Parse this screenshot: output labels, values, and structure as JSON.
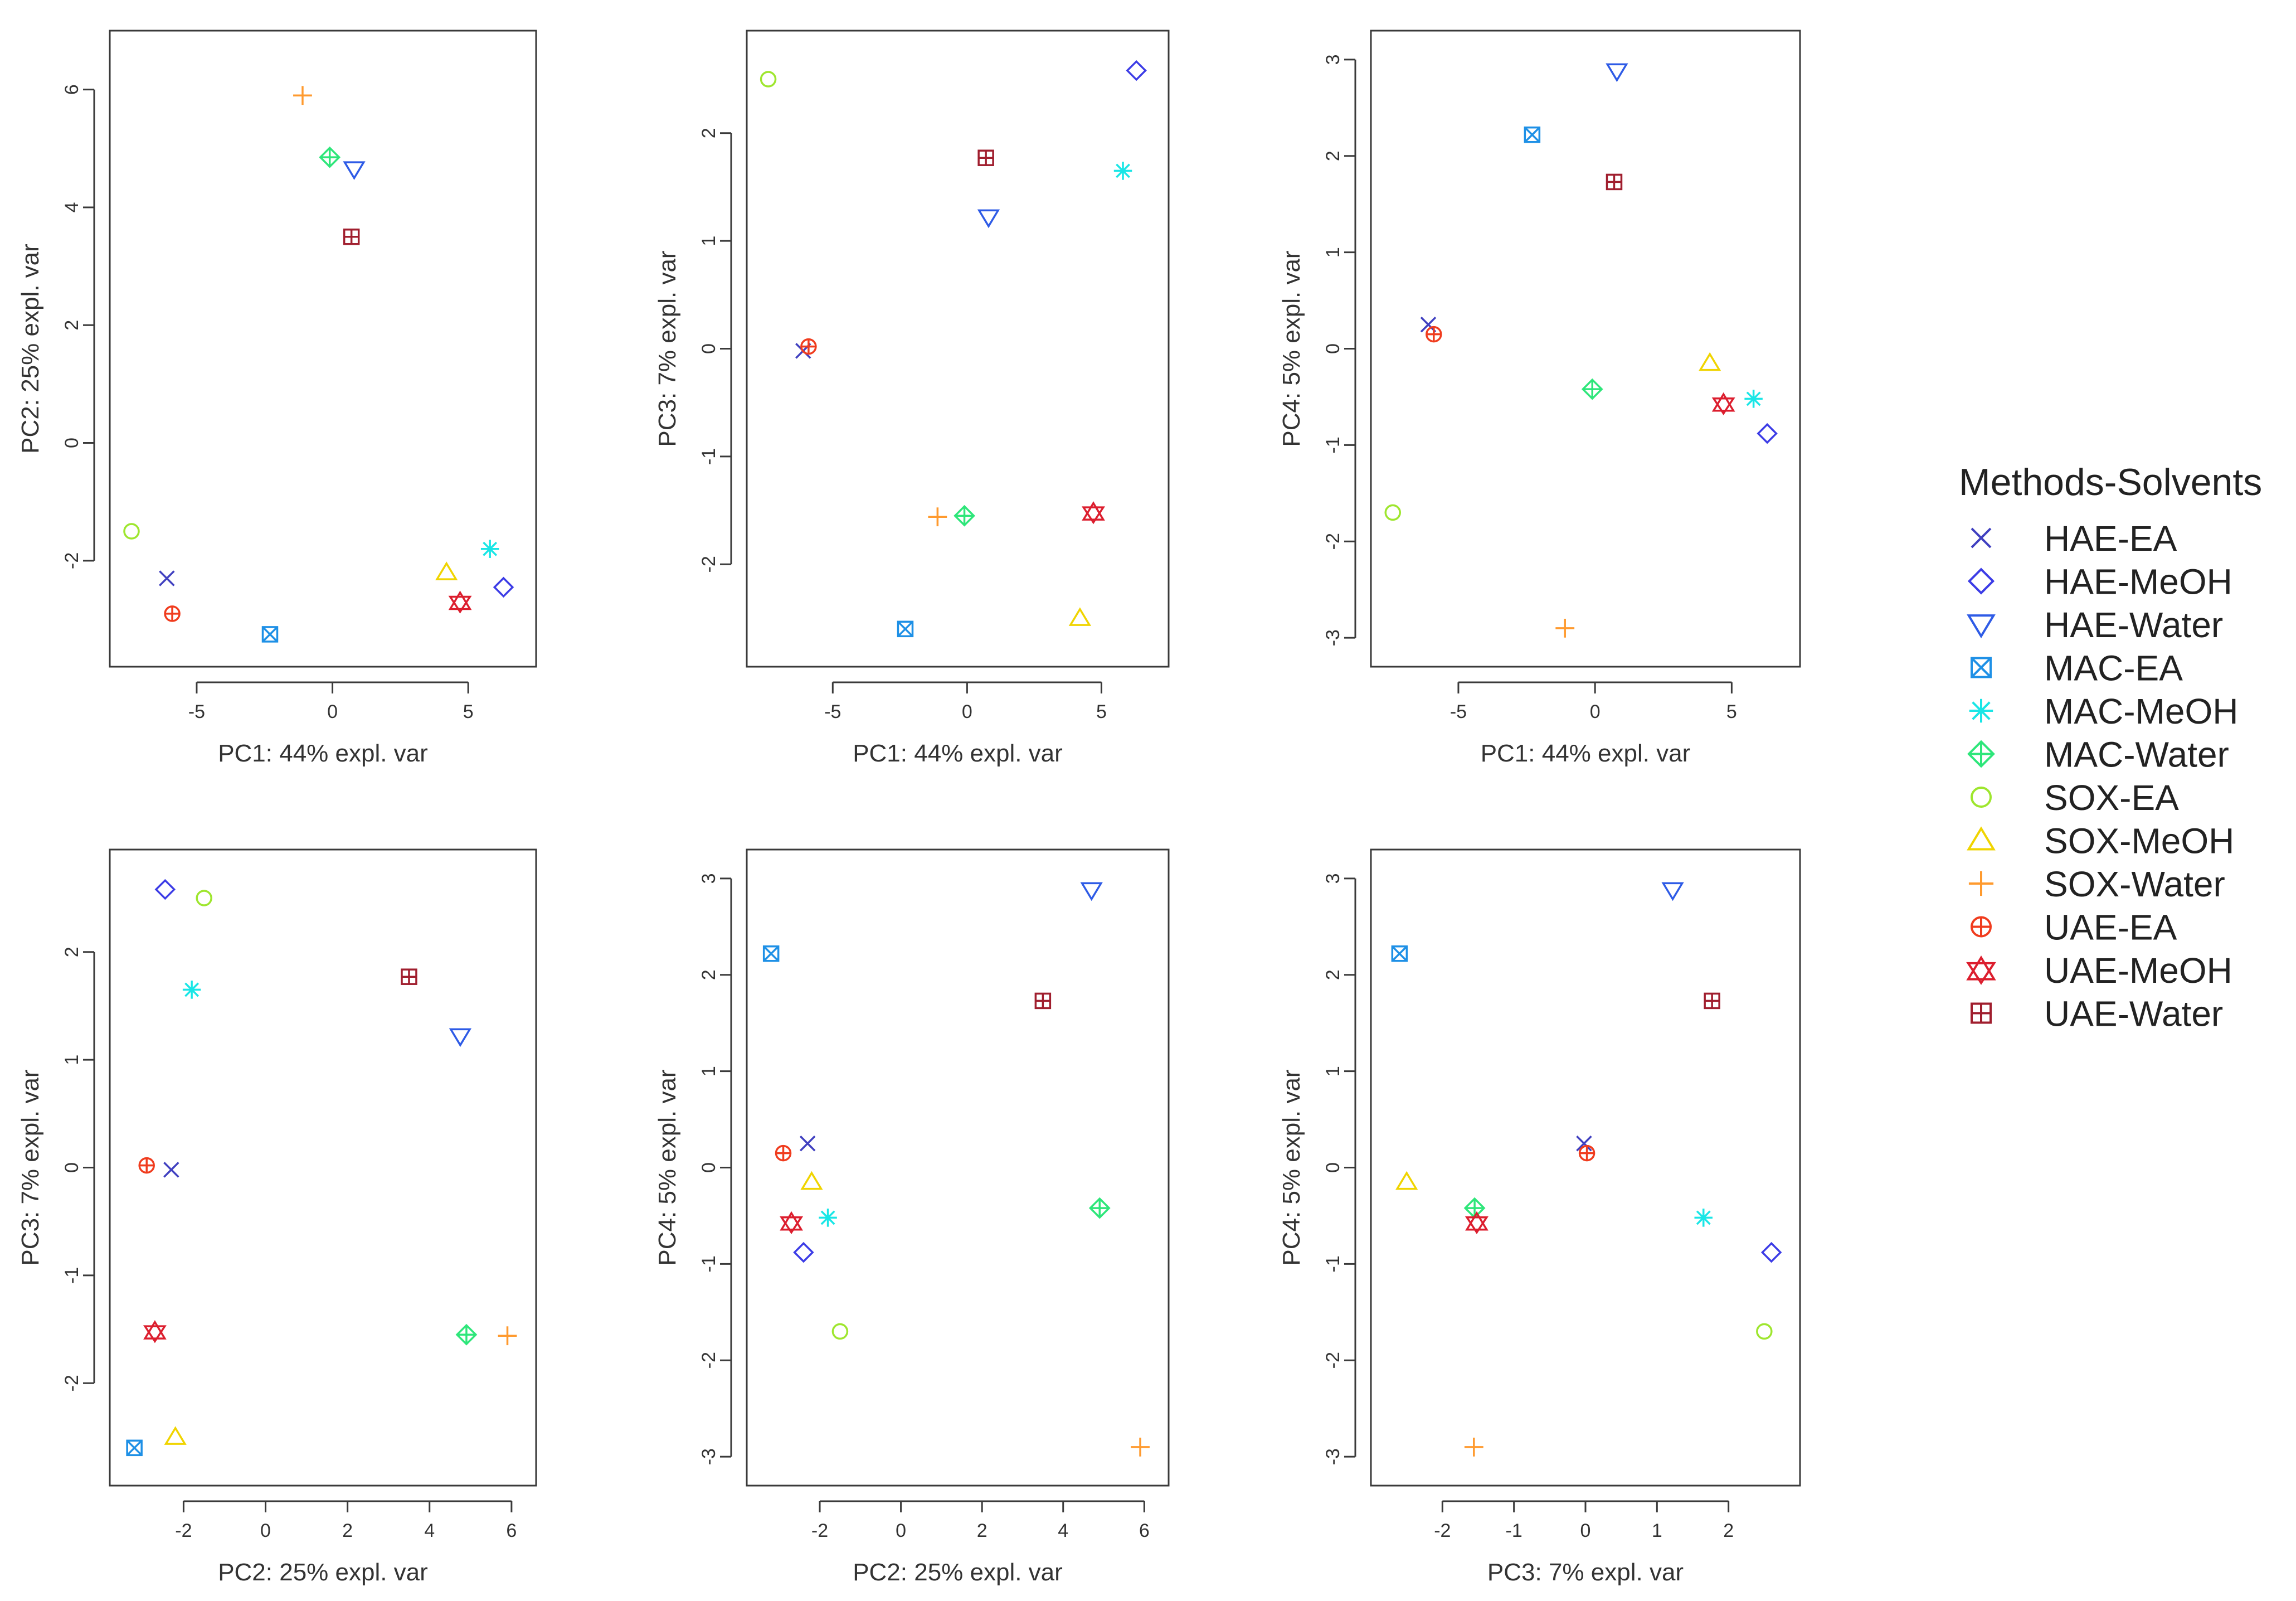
{
  "legend": {
    "title": "Methods-Solvents",
    "items": [
      {
        "label": "HAE-EA",
        "color": "#4040c0",
        "icon": "x-icon"
      },
      {
        "label": "HAE-MeOH",
        "color": "#3c3ce6",
        "icon": "diamond-icon"
      },
      {
        "label": "HAE-Water",
        "color": "#2e5be6",
        "icon": "triangle-down-icon"
      },
      {
        "label": "MAC-EA",
        "color": "#1e90e6",
        "icon": "boxed-x-icon"
      },
      {
        "label": "MAC-MeOH",
        "color": "#19e6e6",
        "icon": "asterisk-icon"
      },
      {
        "label": "MAC-Water",
        "color": "#2ee67a",
        "icon": "diamond-plus-icon"
      },
      {
        "label": "SOX-EA",
        "color": "#9ee62e",
        "icon": "circle-icon"
      },
      {
        "label": "SOX-MeOH",
        "color": "#f0d400",
        "icon": "triangle-up-icon"
      },
      {
        "label": "SOX-Water",
        "color": "#ff9a2e",
        "icon": "plus-icon"
      },
      {
        "label": "UAE-EA",
        "color": "#f03c1e",
        "icon": "circle-plus-icon"
      },
      {
        "label": "UAE-MeOH",
        "color": "#dc1e2e",
        "icon": "star-of-david-icon"
      },
      {
        "label": "UAE-Water",
        "color": "#a01e2e",
        "icon": "boxed-plus-icon"
      }
    ]
  },
  "chart_data": [
    {
      "type": "scatter",
      "id": "pc1-pc2",
      "xlabel": "PC1: 44% expl. var",
      "ylabel": "PC2: 25% expl. var",
      "xlim": [
        -8.2,
        7.5
      ],
      "ylim": [
        -3.8,
        7.0
      ],
      "xticks": [
        -5,
        0,
        5
      ],
      "yticks": [
        -2,
        0,
        2,
        4,
        6
      ],
      "points": [
        {
          "series": "HAE-EA",
          "x": -6.1,
          "y": -2.3
        },
        {
          "series": "HAE-MeOH",
          "x": 6.3,
          "y": -2.45
        },
        {
          "series": "HAE-Water",
          "x": 0.8,
          "y": 4.65
        },
        {
          "series": "MAC-EA",
          "x": -2.3,
          "y": -3.25
        },
        {
          "series": "MAC-MeOH",
          "x": 5.8,
          "y": -1.8
        },
        {
          "series": "MAC-Water",
          "x": -0.1,
          "y": 4.85
        },
        {
          "series": "SOX-EA",
          "x": -7.4,
          "y": -1.5
        },
        {
          "series": "SOX-MeOH",
          "x": 4.2,
          "y": -2.2
        },
        {
          "series": "SOX-Water",
          "x": -1.1,
          "y": 5.9
        },
        {
          "series": "UAE-EA",
          "x": -5.9,
          "y": -2.9
        },
        {
          "series": "UAE-MeOH",
          "x": 4.7,
          "y": -2.7
        },
        {
          "series": "UAE-Water",
          "x": 0.7,
          "y": 3.5
        }
      ]
    },
    {
      "type": "scatter",
      "id": "pc1-pc3",
      "xlabel": "PC1: 44% expl. var",
      "ylabel": "PC3: 7% expl. var",
      "xlim": [
        -8.2,
        7.5
      ],
      "ylim": [
        -2.95,
        2.95
      ],
      "xticks": [
        -5,
        0,
        5
      ],
      "yticks": [
        -2,
        -1,
        0,
        1,
        2
      ],
      "points": [
        {
          "series": "HAE-EA",
          "x": -6.1,
          "y": -0.02
        },
        {
          "series": "HAE-MeOH",
          "x": 6.3,
          "y": 2.58
        },
        {
          "series": "HAE-Water",
          "x": 0.8,
          "y": 1.22
        },
        {
          "series": "MAC-EA",
          "x": -2.3,
          "y": -2.6
        },
        {
          "series": "MAC-MeOH",
          "x": 5.8,
          "y": 1.65
        },
        {
          "series": "MAC-Water",
          "x": -0.1,
          "y": -1.55
        },
        {
          "series": "SOX-EA",
          "x": -7.4,
          "y": 2.5
        },
        {
          "series": "SOX-MeOH",
          "x": 4.2,
          "y": -2.5
        },
        {
          "series": "SOX-Water",
          "x": -1.1,
          "y": -1.56
        },
        {
          "series": "UAE-EA",
          "x": -5.9,
          "y": 0.02
        },
        {
          "series": "UAE-MeOH",
          "x": 4.7,
          "y": -1.52
        },
        {
          "series": "UAE-Water",
          "x": 0.7,
          "y": 1.77
        }
      ]
    },
    {
      "type": "scatter",
      "id": "pc1-pc4",
      "xlabel": "PC1: 44% expl. var",
      "ylabel": "PC4: 5% expl. var",
      "xlim": [
        -8.2,
        7.5
      ],
      "ylim": [
        -3.3,
        3.3
      ],
      "xticks": [
        -5,
        0,
        5
      ],
      "yticks": [
        -3,
        -2,
        -1,
        0,
        1,
        2,
        3
      ],
      "points": [
        {
          "series": "HAE-EA",
          "x": -6.1,
          "y": 0.25
        },
        {
          "series": "HAE-MeOH",
          "x": 6.3,
          "y": -0.88
        },
        {
          "series": "HAE-Water",
          "x": 0.8,
          "y": 2.88
        },
        {
          "series": "MAC-EA",
          "x": -2.3,
          "y": 2.22
        },
        {
          "series": "MAC-MeOH",
          "x": 5.8,
          "y": -0.52
        },
        {
          "series": "MAC-Water",
          "x": -0.1,
          "y": -0.42
        },
        {
          "series": "SOX-EA",
          "x": -7.4,
          "y": -1.7
        },
        {
          "series": "SOX-MeOH",
          "x": 4.2,
          "y": -0.15
        },
        {
          "series": "SOX-Water",
          "x": -1.1,
          "y": -2.9
        },
        {
          "series": "UAE-EA",
          "x": -5.9,
          "y": 0.15
        },
        {
          "series": "UAE-MeOH",
          "x": 4.7,
          "y": -0.57
        },
        {
          "series": "UAE-Water",
          "x": 0.7,
          "y": 1.73
        }
      ]
    },
    {
      "type": "scatter",
      "id": "pc2-pc3",
      "xlabel": "PC2: 25% expl. var",
      "ylabel": "PC3: 7% expl. var",
      "xlim": [
        -3.8,
        6.6
      ],
      "ylim": [
        -2.95,
        2.95
      ],
      "xticks": [
        -2,
        0,
        2,
        4,
        6
      ],
      "yticks": [
        -2,
        -1,
        0,
        1,
        2
      ],
      "points": [
        {
          "series": "HAE-EA",
          "x": -2.3,
          "y": -0.02
        },
        {
          "series": "HAE-MeOH",
          "x": -2.45,
          "y": 2.58
        },
        {
          "series": "HAE-Water",
          "x": 4.75,
          "y": 1.22
        },
        {
          "series": "MAC-EA",
          "x": -3.2,
          "y": -2.6
        },
        {
          "series": "MAC-MeOH",
          "x": -1.8,
          "y": 1.65
        },
        {
          "series": "MAC-Water",
          "x": 4.9,
          "y": -1.55
        },
        {
          "series": "SOX-EA",
          "x": -1.5,
          "y": 2.5
        },
        {
          "series": "SOX-MeOH",
          "x": -2.2,
          "y": -2.5
        },
        {
          "series": "SOX-Water",
          "x": 5.9,
          "y": -1.56
        },
        {
          "series": "UAE-EA",
          "x": -2.9,
          "y": 0.02
        },
        {
          "series": "UAE-MeOH",
          "x": -2.7,
          "y": -1.52
        },
        {
          "series": "UAE-Water",
          "x": 3.5,
          "y": 1.77
        }
      ]
    },
    {
      "type": "scatter",
      "id": "pc2-pc4",
      "xlabel": "PC2: 25% expl. var",
      "ylabel": "PC4: 5% expl. var",
      "xlim": [
        -3.8,
        6.6
      ],
      "ylim": [
        -3.3,
        3.3
      ],
      "xticks": [
        -2,
        0,
        2,
        4,
        6
      ],
      "yticks": [
        -3,
        -2,
        -1,
        0,
        1,
        2,
        3
      ],
      "points": [
        {
          "series": "HAE-EA",
          "x": -2.3,
          "y": 0.25
        },
        {
          "series": "HAE-MeOH",
          "x": -2.4,
          "y": -0.88
        },
        {
          "series": "HAE-Water",
          "x": 4.7,
          "y": 2.88
        },
        {
          "series": "MAC-EA",
          "x": -3.2,
          "y": 2.22
        },
        {
          "series": "MAC-MeOH",
          "x": -1.8,
          "y": -0.52
        },
        {
          "series": "MAC-Water",
          "x": 4.9,
          "y": -0.42
        },
        {
          "series": "SOX-EA",
          "x": -1.5,
          "y": -1.7
        },
        {
          "series": "SOX-MeOH",
          "x": -2.2,
          "y": -0.15
        },
        {
          "series": "SOX-Water",
          "x": 5.9,
          "y": -2.9
        },
        {
          "series": "UAE-EA",
          "x": -2.9,
          "y": 0.15
        },
        {
          "series": "UAE-MeOH",
          "x": -2.7,
          "y": -0.57
        },
        {
          "series": "UAE-Water",
          "x": 3.5,
          "y": 1.73
        }
      ]
    },
    {
      "type": "scatter",
      "id": "pc3-pc4",
      "xlabel": "PC3: 7% expl. var",
      "ylabel": "PC4: 5% expl. var",
      "xlim": [
        -3.0,
        3.0
      ],
      "ylim": [
        -3.3,
        3.3
      ],
      "xticks": [
        -2,
        -1,
        0,
        1,
        2
      ],
      "yticks": [
        -3,
        -2,
        -1,
        0,
        1,
        2,
        3
      ],
      "points": [
        {
          "series": "HAE-EA",
          "x": -0.02,
          "y": 0.25
        },
        {
          "series": "HAE-MeOH",
          "x": 2.6,
          "y": -0.88
        },
        {
          "series": "HAE-Water",
          "x": 1.22,
          "y": 2.88
        },
        {
          "series": "MAC-EA",
          "x": -2.6,
          "y": 2.22
        },
        {
          "series": "MAC-MeOH",
          "x": 1.65,
          "y": -0.52
        },
        {
          "series": "MAC-Water",
          "x": -1.55,
          "y": -0.42
        },
        {
          "series": "SOX-EA",
          "x": 2.5,
          "y": -1.7
        },
        {
          "series": "SOX-MeOH",
          "x": -2.5,
          "y": -0.15
        },
        {
          "series": "SOX-Water",
          "x": -1.56,
          "y": -2.9
        },
        {
          "series": "UAE-EA",
          "x": 0.02,
          "y": 0.15
        },
        {
          "series": "UAE-MeOH",
          "x": -1.52,
          "y": -0.57
        },
        {
          "series": "UAE-Water",
          "x": 1.77,
          "y": 1.73
        }
      ]
    }
  ]
}
